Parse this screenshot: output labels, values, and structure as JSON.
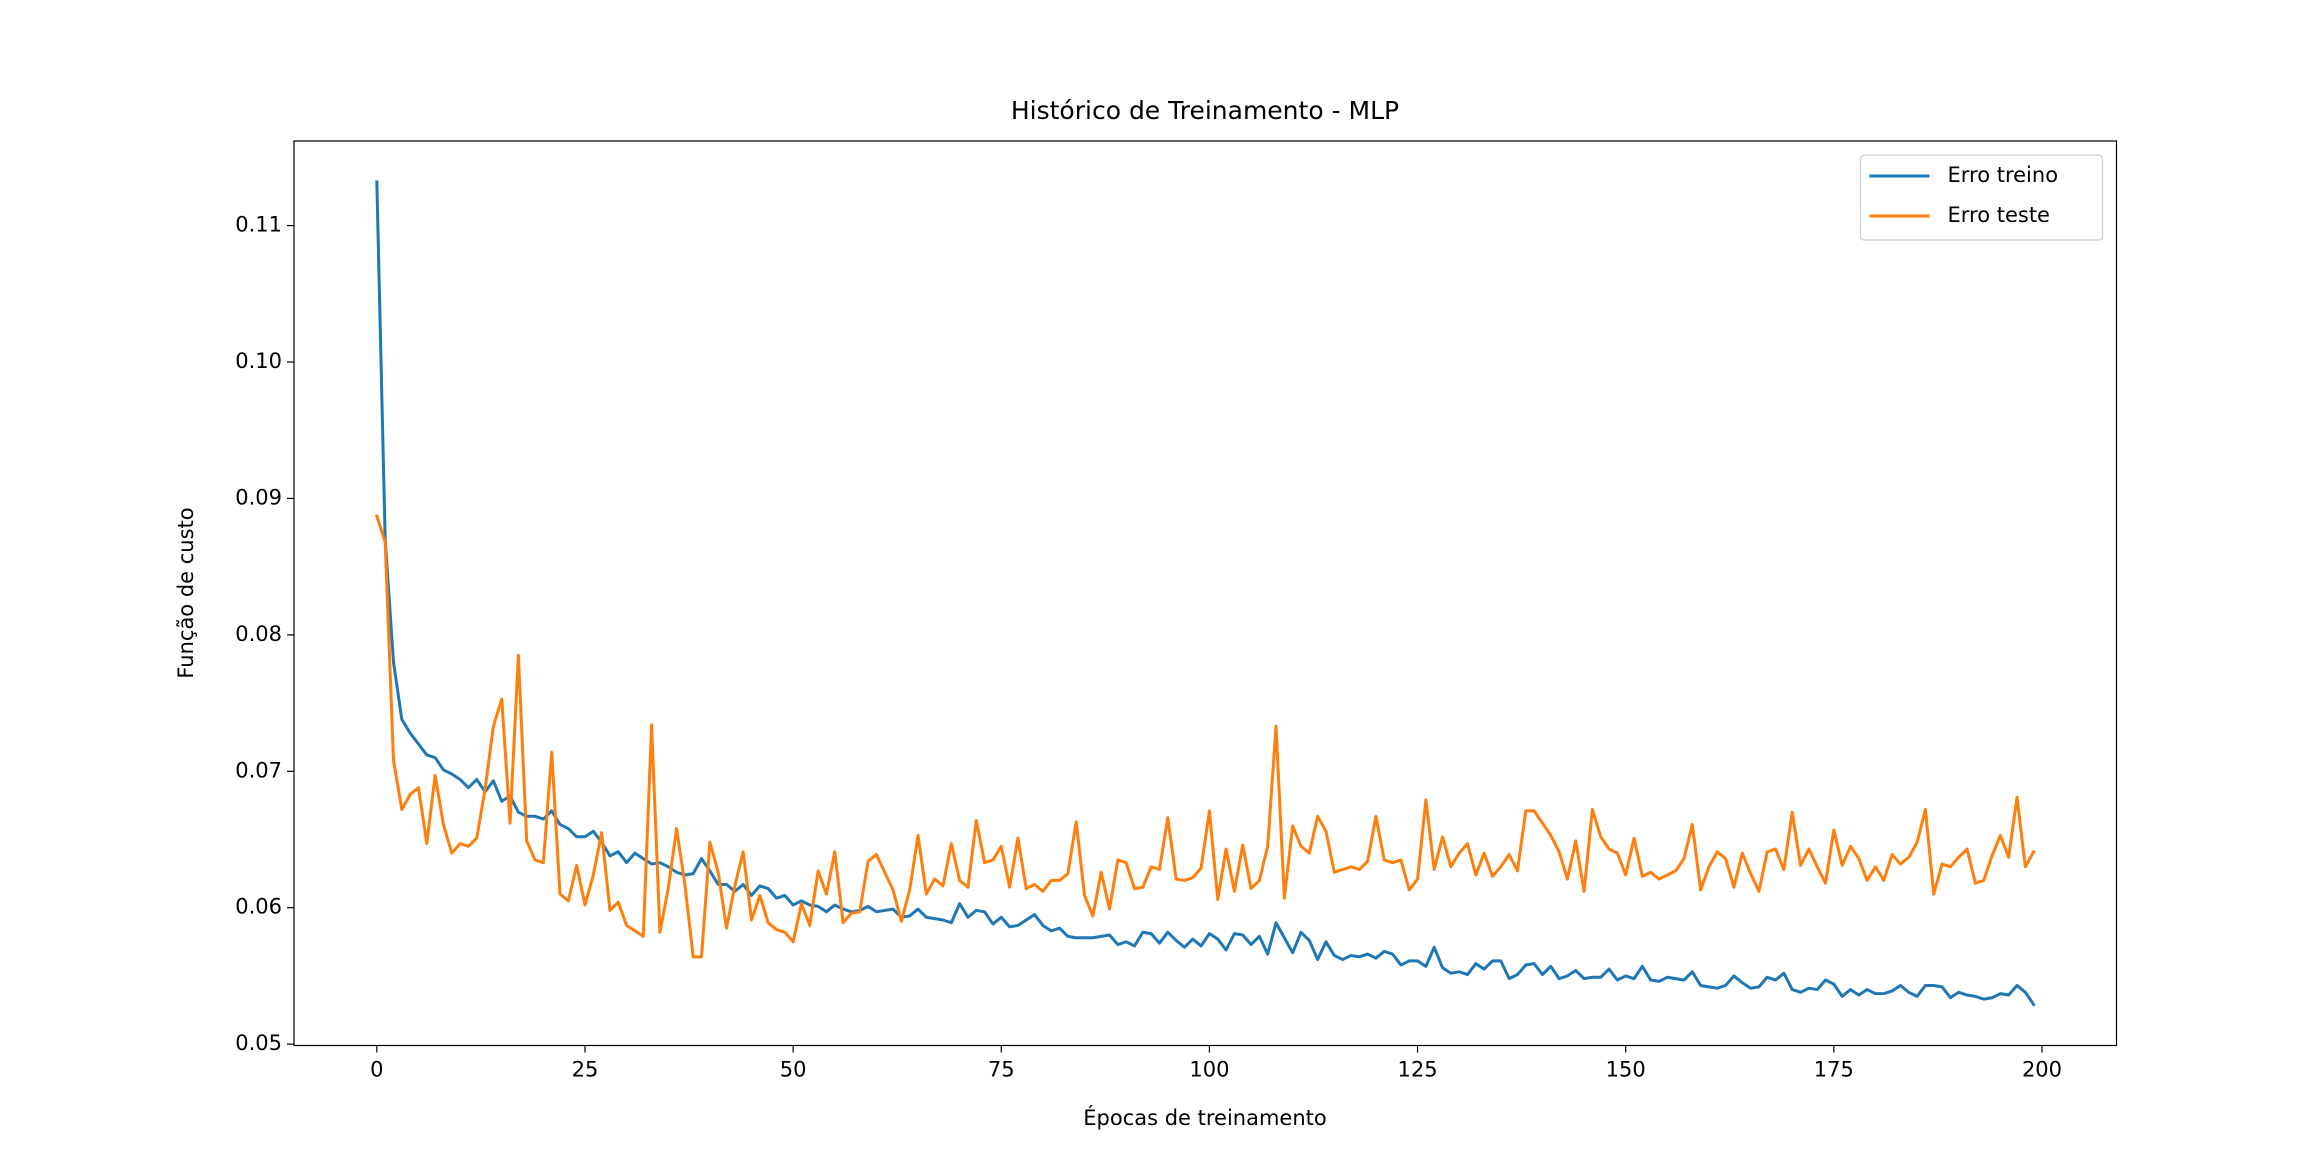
{
  "chart_data": {
    "type": "line",
    "title": "Histórico de Treinamento - MLP",
    "xlabel": "Épocas de treinamento",
    "ylabel": "Função de custo",
    "legend": "upper right",
    "xlim": [
      -9.95,
      208.95
    ],
    "ylim": [
      0.0499,
      0.1162
    ],
    "xticks": [
      0,
      25,
      50,
      75,
      100,
      125,
      150,
      175,
      200
    ],
    "yticks": [
      0.05,
      0.06,
      0.07,
      0.08,
      0.09,
      {
        "value": 0.1,
        "label": "0.10"
      },
      0.11
    ],
    "x": [
      0,
      1,
      2,
      3,
      4,
      5,
      6,
      7,
      8,
      9,
      10,
      11,
      12,
      13,
      14,
      15,
      16,
      17,
      18,
      19,
      20,
      21,
      22,
      23,
      24,
      25,
      26,
      27,
      28,
      29,
      30,
      31,
      32,
      33,
      34,
      35,
      36,
      37,
      38,
      39,
      40,
      41,
      42,
      43,
      44,
      45,
      46,
      47,
      48,
      49,
      50,
      51,
      52,
      53,
      54,
      55,
      56,
      57,
      58,
      59,
      60,
      61,
      62,
      63,
      64,
      65,
      66,
      67,
      68,
      69,
      70,
      71,
      72,
      73,
      74,
      75,
      76,
      77,
      78,
      79,
      80,
      81,
      82,
      83,
      84,
      85,
      86,
      87,
      88,
      89,
      90,
      91,
      92,
      93,
      94,
      95,
      96,
      97,
      98,
      99,
      100,
      101,
      102,
      103,
      104,
      105,
      106,
      107,
      108,
      109,
      110,
      111,
      112,
      113,
      114,
      115,
      116,
      117,
      118,
      119,
      120,
      121,
      122,
      123,
      124,
      125,
      126,
      127,
      128,
      129,
      130,
      131,
      132,
      133,
      134,
      135,
      136,
      137,
      138,
      139,
      140,
      141,
      142,
      143,
      144,
      145,
      146,
      147,
      148,
      149,
      150,
      151,
      152,
      153,
      154,
      155,
      156,
      157,
      158,
      159,
      160,
      161,
      162,
      163,
      164,
      165,
      166,
      167,
      168,
      169,
      170,
      171,
      172,
      173,
      174,
      175,
      176,
      177,
      178,
      179,
      180,
      181,
      182,
      183,
      184,
      185,
      186,
      187,
      188,
      189,
      190,
      191,
      192,
      193,
      194,
      195,
      196,
      197,
      198,
      199
    ],
    "series": [
      {
        "name": "Erro treino",
        "color": "#1f77b4",
        "values": [
          0.1132,
          0.087,
          0.078,
          0.0738,
          0.0728,
          0.072,
          0.0712,
          0.071,
          0.0701,
          0.0698,
          0.0694,
          0.0688,
          0.0694,
          0.0685,
          0.0693,
          0.0678,
          0.0682,
          0.067,
          0.0667,
          0.0667,
          0.0665,
          0.0671,
          0.0661,
          0.0658,
          0.0652,
          0.0652,
          0.0656,
          0.0648,
          0.0638,
          0.0641,
          0.0633,
          0.064,
          0.0636,
          0.0632,
          0.0633,
          0.063,
          0.0626,
          0.0624,
          0.0625,
          0.0636,
          0.0627,
          0.0617,
          0.0617,
          0.0612,
          0.0617,
          0.0609,
          0.0616,
          0.0614,
          0.0607,
          0.0609,
          0.0602,
          0.0605,
          0.0602,
          0.0601,
          0.0597,
          0.0602,
          0.0599,
          0.0597,
          0.0598,
          0.0601,
          0.0597,
          0.0598,
          0.0599,
          0.0593,
          0.0594,
          0.0599,
          0.0593,
          0.0592,
          0.0591,
          0.0589,
          0.0603,
          0.0593,
          0.0598,
          0.0597,
          0.0588,
          0.0593,
          0.0586,
          0.0587,
          0.0591,
          0.0595,
          0.0587,
          0.0583,
          0.0585,
          0.0579,
          0.0578,
          0.0578,
          0.0578,
          0.0579,
          0.058,
          0.0573,
          0.0575,
          0.0572,
          0.0582,
          0.0581,
          0.0574,
          0.0582,
          0.0576,
          0.0571,
          0.0577,
          0.0572,
          0.0581,
          0.0577,
          0.0569,
          0.0581,
          0.058,
          0.0573,
          0.0579,
          0.0566,
          0.0589,
          0.0578,
          0.0567,
          0.0582,
          0.0576,
          0.0562,
          0.0575,
          0.0565,
          0.0562,
          0.0565,
          0.0564,
          0.0566,
          0.0563,
          0.0568,
          0.0566,
          0.0558,
          0.0561,
          0.0561,
          0.0557,
          0.0571,
          0.0556,
          0.0552,
          0.0553,
          0.0551,
          0.0559,
          0.0555,
          0.0561,
          0.0561,
          0.0548,
          0.0551,
          0.0558,
          0.0559,
          0.0551,
          0.0557,
          0.0548,
          0.055,
          0.0554,
          0.0548,
          0.0549,
          0.0549,
          0.0555,
          0.0547,
          0.055,
          0.0548,
          0.0557,
          0.0547,
          0.0546,
          0.0549,
          0.0548,
          0.0547,
          0.0553,
          0.0543,
          0.0542,
          0.0541,
          0.0543,
          0.055,
          0.0545,
          0.0541,
          0.0542,
          0.0549,
          0.0547,
          0.0552,
          0.054,
          0.0538,
          0.0541,
          0.054,
          0.0547,
          0.0544,
          0.0535,
          0.054,
          0.0536,
          0.054,
          0.0537,
          0.0537,
          0.0539,
          0.0543,
          0.0538,
          0.0535,
          0.0543,
          0.0543,
          0.0542,
          0.0534,
          0.0538,
          0.0536,
          0.0535,
          0.0533,
          0.0534,
          0.0537,
          0.0536,
          0.0543,
          0.0538,
          0.0529
        ]
      },
      {
        "name": "Erro teste",
        "color": "#ff7f0e",
        "values": [
          0.0887,
          0.0868,
          0.0708,
          0.0672,
          0.0683,
          0.0688,
          0.0647,
          0.0697,
          0.0661,
          0.064,
          0.0647,
          0.0645,
          0.0651,
          0.0687,
          0.0733,
          0.0753,
          0.0662,
          0.0785,
          0.0649,
          0.0635,
          0.0633,
          0.0714,
          0.061,
          0.0605,
          0.0631,
          0.0602,
          0.0624,
          0.0655,
          0.0598,
          0.0604,
          0.0587,
          0.0583,
          0.0579,
          0.0734,
          0.0582,
          0.0614,
          0.0658,
          0.0617,
          0.0564,
          0.0564,
          0.0648,
          0.0626,
          0.0585,
          0.0616,
          0.0641,
          0.0591,
          0.0609,
          0.0589,
          0.0584,
          0.0582,
          0.0575,
          0.0603,
          0.0587,
          0.0627,
          0.061,
          0.0641,
          0.0589,
          0.0596,
          0.0597,
          0.0634,
          0.0639,
          0.0626,
          0.0613,
          0.059,
          0.0613,
          0.0653,
          0.061,
          0.0621,
          0.0616,
          0.0647,
          0.062,
          0.0615,
          0.0664,
          0.0633,
          0.0635,
          0.0645,
          0.0615,
          0.0651,
          0.0614,
          0.0617,
          0.0612,
          0.062,
          0.062,
          0.0625,
          0.0663,
          0.0609,
          0.0594,
          0.0626,
          0.0599,
          0.0635,
          0.0633,
          0.0614,
          0.0615,
          0.063,
          0.0628,
          0.0666,
          0.0621,
          0.062,
          0.0622,
          0.0629,
          0.0671,
          0.0606,
          0.0643,
          0.0612,
          0.0646,
          0.0614,
          0.062,
          0.0645,
          0.0733,
          0.0607,
          0.066,
          0.0645,
          0.064,
          0.0667,
          0.0656,
          0.0626,
          0.0628,
          0.063,
          0.0628,
          0.0634,
          0.0667,
          0.0635,
          0.0633,
          0.0635,
          0.0613,
          0.0621,
          0.0679,
          0.0628,
          0.0652,
          0.063,
          0.064,
          0.0647,
          0.0624,
          0.064,
          0.0623,
          0.063,
          0.0639,
          0.0627,
          0.0671,
          0.0671,
          0.0662,
          0.0653,
          0.0641,
          0.0621,
          0.0649,
          0.0612,
          0.0672,
          0.0652,
          0.0643,
          0.064,
          0.0624,
          0.0651,
          0.0623,
          0.0626,
          0.0621,
          0.0624,
          0.0627,
          0.0636,
          0.0661,
          0.0613,
          0.063,
          0.0641,
          0.0636,
          0.0615,
          0.064,
          0.0625,
          0.0612,
          0.0641,
          0.0643,
          0.0628,
          0.067,
          0.0631,
          0.0643,
          0.063,
          0.0618,
          0.0657,
          0.0631,
          0.0645,
          0.0636,
          0.062,
          0.063,
          0.062,
          0.0639,
          0.0632,
          0.0637,
          0.0648,
          0.0672,
          0.061,
          0.0632,
          0.063,
          0.0637,
          0.0643,
          0.0618,
          0.062,
          0.0638,
          0.0653,
          0.0637,
          0.0681,
          0.063,
          0.0641
        ]
      }
    ]
  }
}
